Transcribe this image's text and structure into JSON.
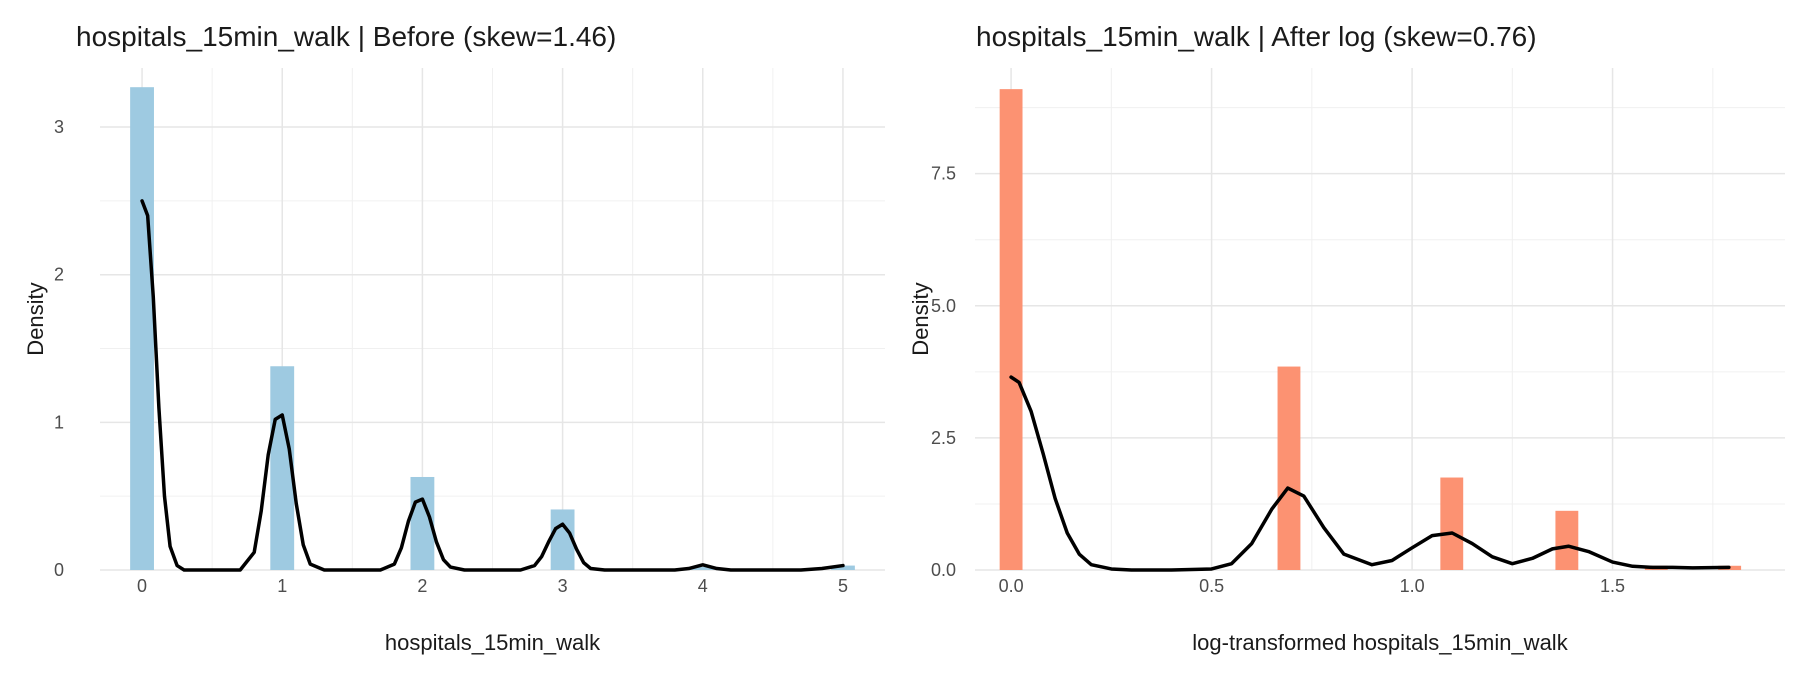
{
  "chart_data": [
    {
      "type": "bar",
      "title": "hospitals_15min_walk | Before (skew=1.46)",
      "xlabel": "hospitals_15min_walk",
      "ylabel": "Density",
      "xlim": [
        -0.3,
        5.3
      ],
      "ylim": [
        0,
        3.4
      ],
      "xticks": [
        0,
        1,
        2,
        3,
        4,
        5
      ],
      "xtick_labels": [
        "0",
        "1",
        "2",
        "3",
        "4",
        "5"
      ],
      "yticks": [
        0,
        1,
        2,
        3
      ],
      "ytick_labels": [
        "0",
        "1",
        "2",
        "3"
      ],
      "grid": true,
      "bar_color": "#9ecae1",
      "bar_width": 0.17,
      "bars": [
        {
          "x": 0,
          "density": 3.27
        },
        {
          "x": 1,
          "density": 1.38
        },
        {
          "x": 2,
          "density": 0.63
        },
        {
          "x": 3,
          "density": 0.41
        },
        {
          "x": 4,
          "density": 0.02
        },
        {
          "x": 5,
          "density": 0.03
        }
      ],
      "kde": {
        "color": "#000000",
        "x": [
          0.0,
          0.04,
          0.08,
          0.12,
          0.16,
          0.2,
          0.25,
          0.3,
          0.4,
          0.5,
          0.6,
          0.7,
          0.8,
          0.85,
          0.9,
          0.95,
          1.0,
          1.05,
          1.1,
          1.15,
          1.2,
          1.3,
          1.5,
          1.7,
          1.8,
          1.85,
          1.9,
          1.95,
          2.0,
          2.05,
          2.1,
          2.15,
          2.2,
          2.3,
          2.5,
          2.7,
          2.8,
          2.85,
          2.9,
          2.95,
          3.0,
          3.05,
          3.1,
          3.15,
          3.2,
          3.3,
          3.5,
          3.8,
          3.9,
          4.0,
          4.1,
          4.2,
          4.5,
          4.7,
          4.85,
          5.0
        ],
        "y": [
          2.5,
          2.4,
          1.85,
          1.1,
          0.5,
          0.16,
          0.03,
          0.0,
          0.0,
          0.0,
          0.0,
          0.0,
          0.12,
          0.4,
          0.78,
          1.02,
          1.05,
          0.82,
          0.45,
          0.17,
          0.04,
          0.0,
          0.0,
          0.0,
          0.04,
          0.15,
          0.33,
          0.46,
          0.48,
          0.36,
          0.19,
          0.07,
          0.02,
          0.0,
          0.0,
          0.0,
          0.03,
          0.09,
          0.19,
          0.28,
          0.31,
          0.25,
          0.14,
          0.05,
          0.01,
          0.0,
          0.0,
          0.0,
          0.01,
          0.035,
          0.01,
          0.0,
          0.0,
          0.0,
          0.01,
          0.03
        ]
      }
    },
    {
      "type": "bar",
      "title": "hospitals_15min_walk | After log (skew=0.76)",
      "xlabel": "log-transformed hospitals_15min_walk",
      "ylabel": "Density",
      "xlim": [
        -0.09,
        1.93
      ],
      "ylim": [
        0,
        9.5
      ],
      "xticks": [
        0,
        0.5,
        1.0,
        1.5
      ],
      "xtick_labels": [
        "0.0",
        "0.5",
        "1.0",
        "1.5"
      ],
      "yticks": [
        0,
        2.5,
        5.0,
        7.5
      ],
      "ytick_labels": [
        "0.0",
        "2.5",
        "5.0",
        "7.5"
      ],
      "grid": true,
      "bar_color": "#fc9272",
      "bar_width": 0.057,
      "bars": [
        {
          "x": 0.0,
          "density": 9.1
        },
        {
          "x": 0.693,
          "density": 3.85
        },
        {
          "x": 1.099,
          "density": 1.75
        },
        {
          "x": 1.386,
          "density": 1.12
        },
        {
          "x": 1.609,
          "density": 0.08
        },
        {
          "x": 1.792,
          "density": 0.08
        }
      ],
      "kde": {
        "color": "#000000",
        "x": [
          0.0,
          0.02,
          0.05,
          0.08,
          0.11,
          0.14,
          0.17,
          0.2,
          0.25,
          0.3,
          0.4,
          0.5,
          0.55,
          0.6,
          0.65,
          0.69,
          0.73,
          0.78,
          0.83,
          0.9,
          0.95,
          1.0,
          1.05,
          1.1,
          1.15,
          1.2,
          1.25,
          1.3,
          1.35,
          1.39,
          1.44,
          1.5,
          1.55,
          1.6,
          1.65,
          1.7,
          1.79
        ],
        "y": [
          3.65,
          3.55,
          3.0,
          2.2,
          1.35,
          0.7,
          0.3,
          0.1,
          0.02,
          0.0,
          0.0,
          0.02,
          0.12,
          0.5,
          1.15,
          1.55,
          1.4,
          0.8,
          0.3,
          0.1,
          0.18,
          0.42,
          0.65,
          0.7,
          0.5,
          0.25,
          0.12,
          0.22,
          0.4,
          0.45,
          0.35,
          0.15,
          0.07,
          0.05,
          0.05,
          0.04,
          0.05
        ]
      }
    }
  ]
}
